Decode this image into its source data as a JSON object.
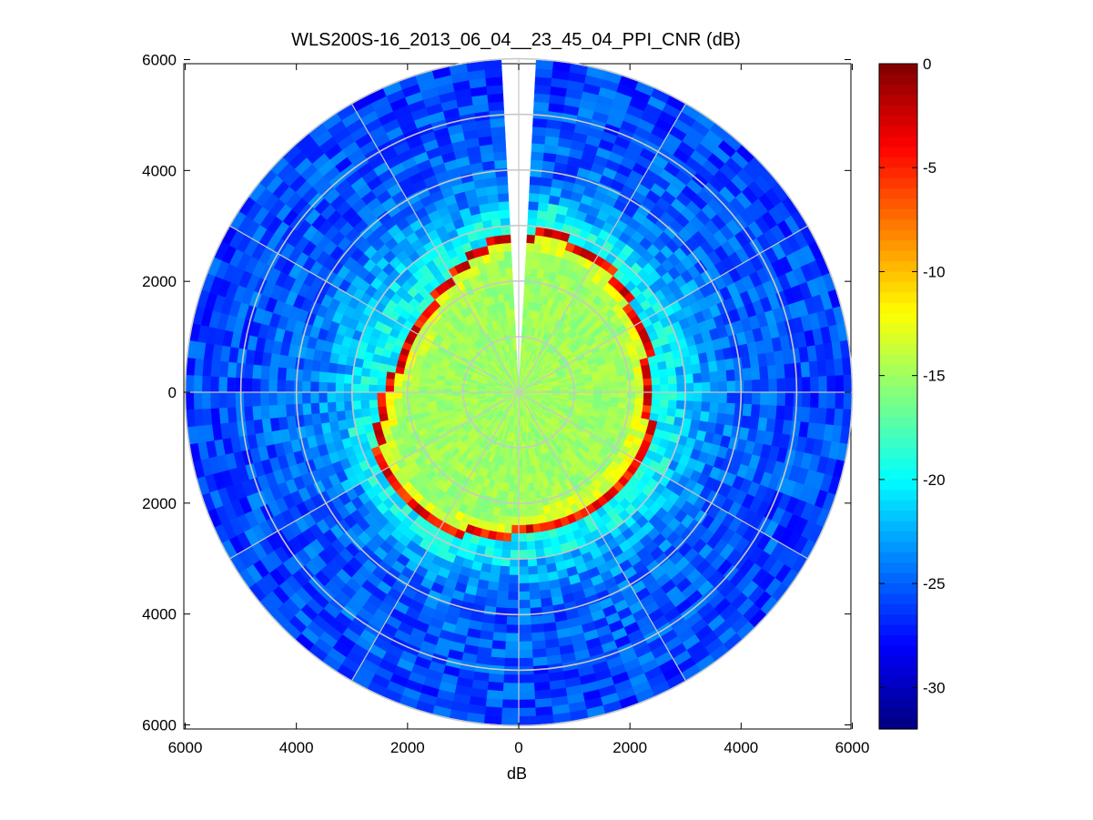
{
  "chart_data": {
    "type": "heatmap",
    "subtype": "polar-ppi",
    "title": "WLS200S-16_2013_06_04__23_45_04_PPI_CNR (dB)",
    "xlabel": "dB",
    "ylabel": "",
    "xlim": [
      -6000,
      6000
    ],
    "ylim": [
      -6000,
      6000
    ],
    "x_ticks": [
      -6000,
      -4000,
      -2000,
      0,
      2000,
      4000,
      6000
    ],
    "x_tick_labels": [
      "6000",
      "4000",
      "2000",
      "0",
      "2000",
      "4000",
      "6000"
    ],
    "y_ticks": [
      6000,
      4000,
      2000,
      0,
      -2000,
      -4000,
      -6000
    ],
    "y_tick_labels": [
      "6000",
      "4000",
      "2000",
      "0",
      "2000",
      "4000",
      "6000"
    ],
    "polar_grid": {
      "rings_m": [
        1000,
        2000,
        3000,
        4000,
        5000,
        6000
      ],
      "spoke_step_deg": 30
    },
    "range_max_m": 6000,
    "missing_sector_deg": [
      -3.5,
      3.5
    ],
    "colorbar": {
      "colormap": "jet",
      "min": -32,
      "max": 0,
      "ticks": [
        0,
        -5,
        -10,
        -15,
        -20,
        -25,
        -30
      ],
      "tick_labels": [
        "0",
        "-5",
        "-10",
        "-15",
        "-20",
        "-25",
        "-30"
      ]
    },
    "profile_dB": [
      {
        "range_m": 0,
        "value": -15
      },
      {
        "range_m": 1000,
        "value": -15.5
      },
      {
        "range_m": 2000,
        "value": -15
      },
      {
        "range_m": 2300,
        "value": -13
      },
      {
        "range_m": 2600,
        "value": -19
      },
      {
        "range_m": 3000,
        "value": -22
      },
      {
        "range_m": 4000,
        "value": -25
      },
      {
        "range_m": 6000,
        "value": -26
      }
    ],
    "edge_ring_dB": -4,
    "grid_on": true,
    "legend": "none"
  }
}
